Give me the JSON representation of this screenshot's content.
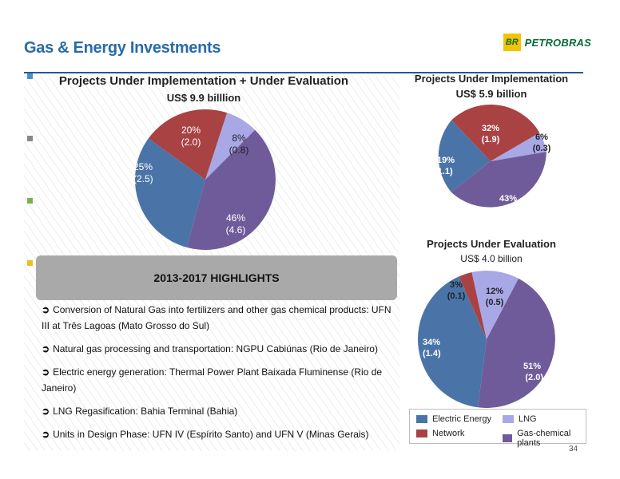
{
  "header": {
    "title": "Gas & Energy Investments",
    "logo_text": "PETROBRAS",
    "logo_mark": "BR"
  },
  "colors": {
    "electric_energy": "#4a74a8",
    "network": "#a94243",
    "lng": "#a8a8e6",
    "gas_chemical_plants": "#6f5b9a",
    "title": "#2a6aa8"
  },
  "charts": {
    "total": {
      "title": "Projects Under Implementation + Under Evaluation",
      "subtitle": "US$ 9.9 billlion",
      "labels": {
        "electric": [
          "25%",
          "(2.5)"
        ],
        "network": [
          "20%",
          "(2.0)"
        ],
        "lng": [
          "8%",
          "(0.8)"
        ],
        "gas": [
          "46%",
          "(4.6)"
        ]
      }
    },
    "implementation": {
      "title": "Projects Under Implementation",
      "subtitle": "US$ 5.9 billion",
      "labels": {
        "electric": [
          "19%",
          "(1.1)"
        ],
        "network": [
          "32%",
          "(1.9)"
        ],
        "lng": [
          "6%",
          "(0.3)"
        ],
        "gas": [
          "43%",
          "(2.6)"
        ]
      }
    },
    "evaluation": {
      "title": "Projects Under Evaluation",
      "subtitle": "US$ 4.0 billion",
      "labels": {
        "electric": [
          "34%",
          "(1.4)"
        ],
        "network": [
          "3%",
          "(0.1)"
        ],
        "lng": [
          "12%",
          "(0.5)"
        ],
        "gas": [
          "51%",
          "(2.0)"
        ]
      }
    }
  },
  "chart_data": [
    {
      "type": "pie",
      "title": "Projects Under Implementation + Under Evaluation",
      "subtitle": "US$ 9.9 billlion",
      "categories": [
        "Electric Energy",
        "Network",
        "LNG",
        "Gas-chemical plants"
      ],
      "percentages": [
        25,
        20,
        8,
        46
      ],
      "values": [
        2.5,
        2.0,
        0.8,
        4.6
      ]
    },
    {
      "type": "pie",
      "title": "Projects Under Implementation",
      "subtitle": "US$ 5.9 billion",
      "categories": [
        "Electric Energy",
        "Network",
        "LNG",
        "Gas-chemical plants"
      ],
      "percentages": [
        19,
        32,
        6,
        43
      ],
      "values": [
        1.1,
        1.9,
        0.3,
        2.6
      ]
    },
    {
      "type": "pie",
      "title": "Projects Under Evaluation",
      "subtitle": "US$ 4.0 billion",
      "categories": [
        "Electric Energy",
        "Network",
        "LNG",
        "Gas-chemical plants"
      ],
      "percentages": [
        34,
        3,
        12,
        51
      ],
      "values": [
        1.4,
        0.1,
        0.5,
        2.0
      ]
    }
  ],
  "highlights": {
    "title": "2013-2017 HIGHLIGHTS",
    "items": [
      "Conversion of Natural Gas into fertilizers and other gas chemical products: UFN III at Três Lagoas (Mato Grosso do Sul)",
      "Natural gas processing and transportation: NGPU Cabiúnas (Rio de Janeiro)",
      "Electric energy generation: Thermal Power Plant Baixada Fluminense (Rio de Janeiro)",
      "LNG Regasification: Bahia Terminal (Bahia)",
      "Units in Design Phase: UFN IV (Espírito Santo) and UFN V (Minas Gerais)"
    ]
  },
  "legend": {
    "electric_energy": "Electric Energy",
    "lng": "LNG",
    "network": "Network",
    "gas_chemical_plants": "Gas-chemical plants"
  },
  "page_number": "34"
}
